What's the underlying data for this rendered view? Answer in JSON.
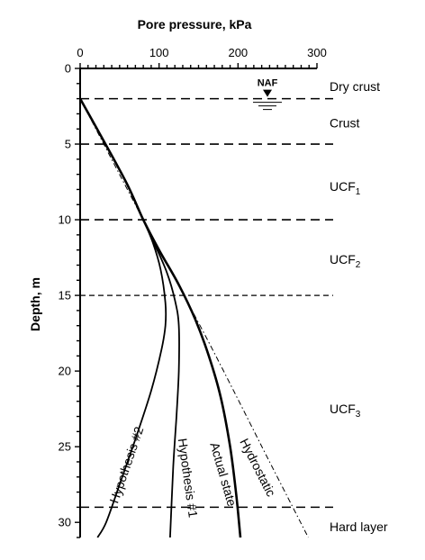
{
  "chart_data": {
    "type": "line",
    "title": "",
    "xlabel": "Pore pressure, kPa",
    "ylabel": "Depth, m",
    "xlim": [
      0,
      300
    ],
    "ylim": [
      0,
      31
    ],
    "y_inverted": true,
    "x_axis_position": "top",
    "x_ticks": [
      0,
      100,
      200,
      300
    ],
    "y_ticks": [
      0,
      5,
      10,
      15,
      20,
      25,
      30
    ],
    "grid": false,
    "legend": "none",
    "groundwater_level": {
      "label": "NAF",
      "depth": 2
    },
    "layer_boundaries": [
      2,
      5,
      10,
      15,
      29
    ],
    "layers": [
      {
        "label": "Dry crust",
        "depth": 1.2
      },
      {
        "label": "Crust",
        "depth": 3.6
      },
      {
        "label": "UCF",
        "sub": "1",
        "depth": 7.8
      },
      {
        "label": "UCF",
        "sub": "2",
        "depth": 12.6
      },
      {
        "label": "UCF",
        "sub": "3",
        "depth": 22.5
      },
      {
        "label": "Hard layer",
        "depth": 30.3
      }
    ],
    "series": [
      {
        "name": "Hydrostatic",
        "style": "dashdot",
        "label_x": 220,
        "label_y": 26.5,
        "label_rot": 63,
        "points": [
          [
            0,
            2
          ],
          [
            80,
            10
          ],
          [
            162,
            18
          ],
          [
            240,
            26
          ],
          [
            289,
            31
          ]
        ]
      },
      {
        "name": "Actual state",
        "style": "solid-bold",
        "label_x": 176,
        "label_y": 26.9,
        "label_rot": 74,
        "points": [
          [
            0,
            2
          ],
          [
            30,
            4.8
          ],
          [
            60,
            7.7
          ],
          [
            80,
            10
          ],
          [
            100,
            12
          ],
          [
            125,
            14.3
          ],
          [
            146,
            16.6
          ],
          [
            163,
            19
          ],
          [
            178,
            21.7
          ],
          [
            190,
            25
          ],
          [
            198,
            28.3
          ],
          [
            203,
            31
          ]
        ]
      },
      {
        "name": "Hypothesis #1",
        "style": "solid",
        "label_x": 131,
        "label_y": 27.1,
        "label_rot": 82,
        "points": [
          [
            0,
            2
          ],
          [
            30,
            4.8
          ],
          [
            60,
            7.7
          ],
          [
            80,
            10
          ],
          [
            95,
            11.7
          ],
          [
            110,
            13.5
          ],
          [
            120,
            15.3
          ],
          [
            125,
            17
          ],
          [
            125,
            20
          ],
          [
            122,
            23
          ],
          [
            118,
            26.3
          ],
          [
            114,
            31
          ]
        ]
      },
      {
        "name": "Hypothesis #2",
        "style": "solid",
        "label_x": 64,
        "label_y": 26.3,
        "label_rot": -71,
        "points": [
          [
            0,
            2
          ],
          [
            30,
            4.8
          ],
          [
            60,
            7.7
          ],
          [
            80,
            10
          ],
          [
            92,
            11.5
          ],
          [
            102,
            13.3
          ],
          [
            108,
            15.5
          ],
          [
            108,
            17
          ],
          [
            103,
            18.6
          ],
          [
            90,
            21.3
          ],
          [
            70,
            24.5
          ],
          [
            50,
            27.5
          ],
          [
            33,
            30
          ],
          [
            22,
            31
          ]
        ]
      }
    ]
  }
}
